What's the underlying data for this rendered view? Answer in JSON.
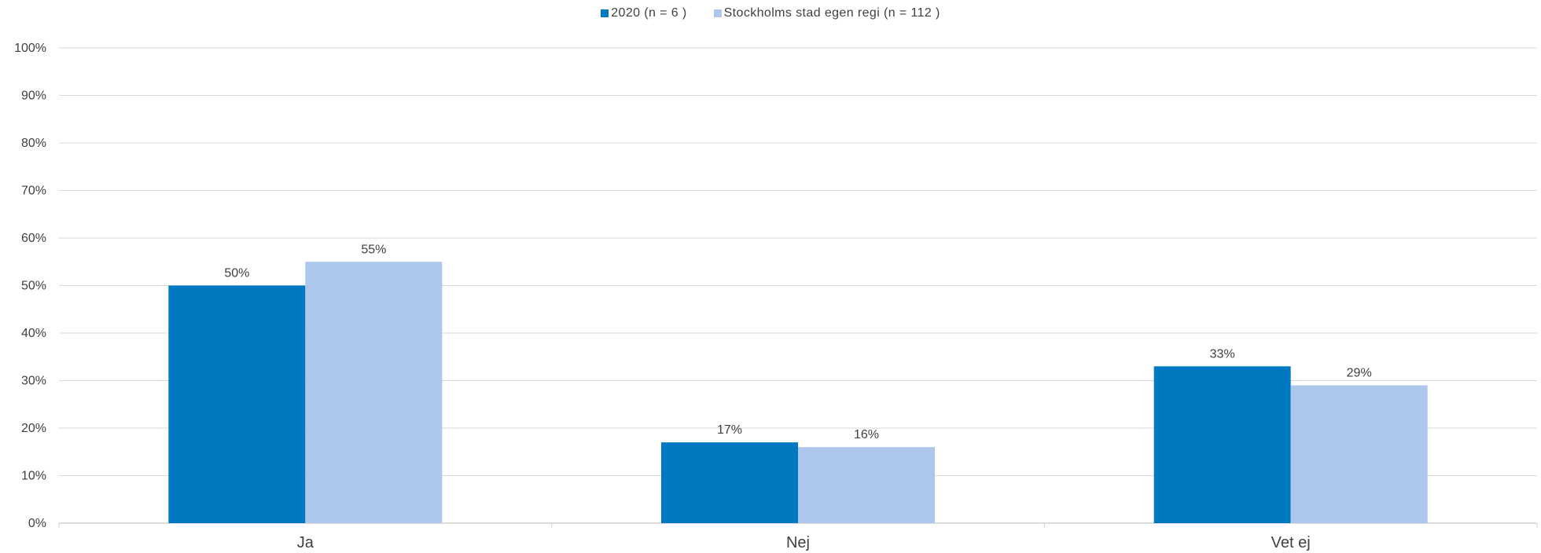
{
  "chart_data": {
    "type": "bar",
    "title": "",
    "xlabel": "",
    "ylabel": "",
    "categories": [
      "Ja",
      "Nej",
      "Vet ej"
    ],
    "series": [
      {
        "name": "2020 (n = 6 )",
        "color": "#0079c1",
        "values": [
          50,
          17,
          33
        ],
        "labels": [
          "50%",
          "17%",
          "33%"
        ]
      },
      {
        "name": "Stockholms stad egen regi (n = 112 )",
        "color": "#adc8ec",
        "values": [
          55,
          16,
          29
        ],
        "labels": [
          "55%",
          "16%",
          "29%"
        ]
      }
    ],
    "ylim": [
      0,
      100
    ],
    "yticks": [
      0,
      10,
      20,
      30,
      40,
      50,
      60,
      70,
      80,
      90,
      100
    ],
    "ytick_labels": [
      "0%",
      "10%",
      "20%",
      "30%",
      "40%",
      "50%",
      "60%",
      "70%",
      "80%",
      "90%",
      "100%"
    ],
    "grid": true,
    "legend_position": "top-center",
    "gridline_color": "#d9d9d9",
    "axis_color": "#d0d0d0",
    "text_color": "#404040"
  }
}
